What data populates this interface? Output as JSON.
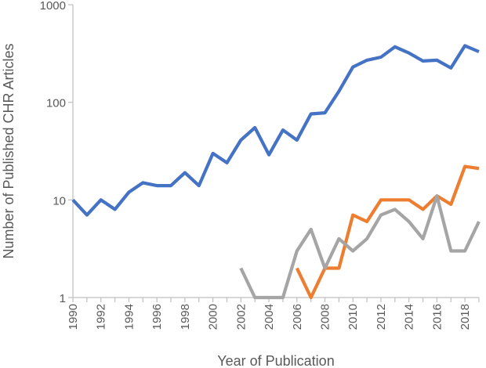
{
  "chart_data": {
    "type": "line",
    "title": "",
    "xlabel": "Year of Publication",
    "ylabel": "Number of Published CHR Articles",
    "yscale": "log",
    "ylim": [
      1,
      1000
    ],
    "yticks": [
      "1",
      "10",
      "100",
      "1000"
    ],
    "xlim": [
      1990,
      2019
    ],
    "xticks": [
      "1990",
      "1992",
      "1994",
      "1996",
      "1998",
      "2000",
      "2002",
      "2004",
      "2006",
      "2008",
      "2010",
      "2012",
      "2014",
      "2016",
      "2018"
    ],
    "grid": false,
    "legend": "none",
    "series": [
      {
        "color": "#4472C4",
        "points": [
          [
            1990,
            10
          ],
          [
            1991,
            7
          ],
          [
            1992,
            10
          ],
          [
            1993,
            8
          ],
          [
            1994,
            12
          ],
          [
            1995,
            15
          ],
          [
            1996,
            14
          ],
          [
            1997,
            14
          ],
          [
            1998,
            19
          ],
          [
            1999,
            14
          ],
          [
            2000,
            30
          ],
          [
            2001,
            24
          ],
          [
            2002,
            41
          ],
          [
            2003,
            55
          ],
          [
            2004,
            29
          ],
          [
            2005,
            52
          ],
          [
            2006,
            41
          ],
          [
            2007,
            76
          ],
          [
            2008,
            78
          ],
          [
            2009,
            130
          ],
          [
            2010,
            230
          ],
          [
            2011,
            270
          ],
          [
            2012,
            290
          ],
          [
            2013,
            370
          ],
          [
            2014,
            320
          ],
          [
            2015,
            265
          ],
          [
            2016,
            270
          ],
          [
            2017,
            225
          ],
          [
            2018,
            380
          ],
          [
            2019,
            330
          ]
        ]
      },
      {
        "color": "#ED7D31",
        "points": [
          [
            2006,
            2
          ],
          [
            2007,
            1
          ],
          [
            2008,
            2
          ],
          [
            2009,
            2
          ],
          [
            2010,
            7
          ],
          [
            2011,
            6
          ],
          [
            2012,
            10
          ],
          [
            2013,
            10
          ],
          [
            2014,
            10
          ],
          [
            2015,
            8
          ],
          [
            2016,
            11
          ],
          [
            2017,
            9
          ],
          [
            2018,
            22
          ],
          [
            2019,
            21
          ]
        ]
      },
      {
        "color": "#A5A5A5",
        "points": [
          [
            2002,
            2
          ],
          [
            2003,
            1
          ],
          [
            2004,
            1
          ],
          [
            2005,
            1
          ],
          [
            2006,
            3
          ],
          [
            2007,
            5
          ],
          [
            2008,
            2
          ],
          [
            2009,
            4
          ],
          [
            2010,
            3
          ],
          [
            2011,
            4
          ],
          [
            2012,
            7
          ],
          [
            2013,
            8
          ],
          [
            2014,
            6
          ],
          [
            2015,
            4
          ],
          [
            2016,
            11
          ],
          [
            2017,
            3
          ],
          [
            2018,
            3
          ],
          [
            2019,
            6
          ]
        ]
      }
    ]
  }
}
